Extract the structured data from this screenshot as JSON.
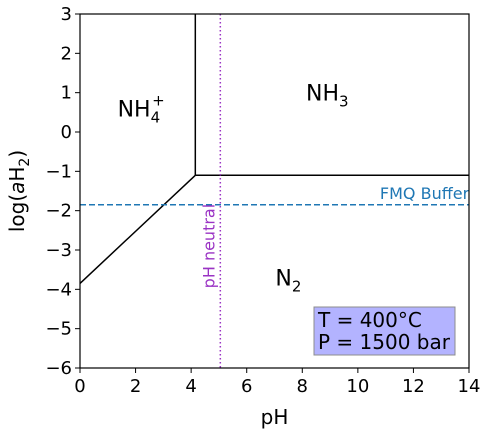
{
  "chart_data": {
    "type": "line",
    "title": "",
    "xlabel": "pH",
    "ylabel_prefix": "log(",
    "ylabel_a": "a",
    "ylabel_h": "H",
    "ylabel_sub": "2",
    "ylabel_suffix": ")",
    "xlim": [
      0,
      14
    ],
    "ylim": [
      -6,
      3
    ],
    "x_ticks": [
      0,
      2,
      4,
      6,
      8,
      10,
      12,
      14
    ],
    "y_ticks": [
      -6,
      -5,
      -4,
      -3,
      -2,
      -1,
      0,
      1,
      2,
      3
    ],
    "grid": false,
    "boundaries": [
      {
        "x": [
          4.15,
          4.15
        ],
        "y": [
          3,
          -1.1
        ],
        "color": "#000000"
      },
      {
        "x": [
          4.15,
          14
        ],
        "y": [
          -1.1,
          -1.1
        ],
        "color": "#000000"
      },
      {
        "x": [
          0,
          4.15
        ],
        "y": [
          -3.85,
          -1.1
        ],
        "color": "#000000"
      }
    ],
    "reference_lines": [
      {
        "orientation": "horizontal",
        "value": -1.85,
        "color": "#1f77b4",
        "style": "dashed",
        "label": "FMQ Buffer",
        "label_x": 12.4
      },
      {
        "orientation": "vertical",
        "value": 5.05,
        "color": "#9a33c4",
        "style": "dotted",
        "label": "pH neutral",
        "label_y": -2.9
      }
    ],
    "regions": [
      {
        "base": "NH",
        "sub": "4",
        "sup": "+",
        "x": 2.2,
        "y": 0.6
      },
      {
        "base": "NH",
        "sub": "3",
        "sup": "",
        "x": 8.9,
        "y": 1.0
      },
      {
        "base": "N",
        "sub": "2",
        "sup": "",
        "x": 7.5,
        "y": -3.7
      }
    ],
    "info_box": {
      "lines": [
        "T = 400°C",
        "P = 1500 bar"
      ],
      "background": "#b3b3ff",
      "border": "#8c8c8c",
      "position": "lower-right"
    }
  }
}
